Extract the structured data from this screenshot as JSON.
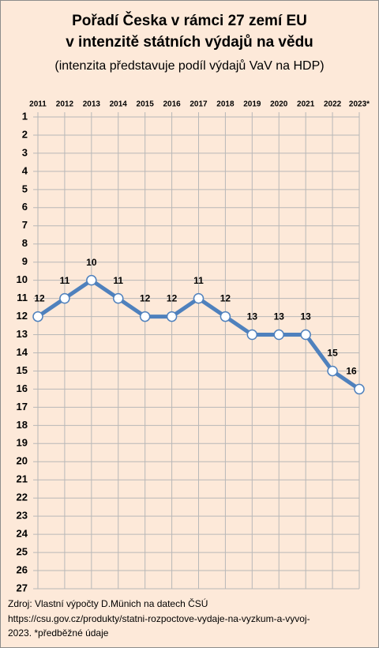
{
  "chart_data": {
    "type": "line",
    "title": [
      "Pořadí Česka v rámci 27 zemí EU",
      "v intenzitě státních výdajů na vědu"
    ],
    "subtitle": "(intenzita představuje podíl výdajů VaV na HDP)",
    "categories": [
      "2011",
      "2012",
      "2013",
      "2014",
      "2015",
      "2016",
      "2017",
      "2018",
      "2019",
      "2020",
      "2021",
      "2022",
      "2023*"
    ],
    "values": [
      12,
      11,
      10,
      11,
      12,
      12,
      11,
      12,
      13,
      13,
      13,
      15,
      16
    ],
    "color": "#4f81bd",
    "ylim": [
      27,
      1
    ],
    "yticks": [
      1,
      2,
      3,
      4,
      5,
      6,
      7,
      8,
      9,
      10,
      11,
      12,
      13,
      14,
      15,
      16,
      17,
      18,
      19,
      20,
      21,
      22,
      23,
      24,
      25,
      26,
      27
    ],
    "grid": true,
    "notes": [
      "Zdroj: Vlastní výpočty D.Münich na datech ČSÚ",
      "https://csu.gov.cz/produkty/statni-rozpoctove-vydaje-na-vyzkum-a-vyvoj-",
      "2023.  *předběžné údaje"
    ]
  }
}
